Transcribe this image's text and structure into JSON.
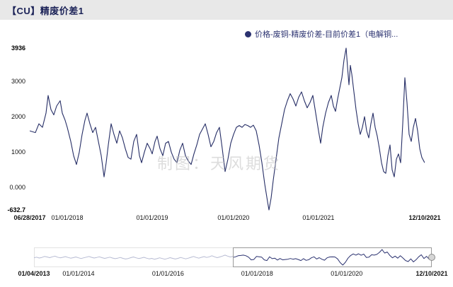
{
  "header": {
    "title": "【CU】精废价差1",
    "bg": "#e8e8e8"
  },
  "legend": {
    "label": "价格-废铜-精废价差-目前价差1（电解铜...",
    "dot_color": "#2b3270",
    "text_color": "#2b3270"
  },
  "watermark": "制图：天风期货",
  "chart_data": {
    "type": "line",
    "title": "【CU】精废价差1",
    "series_name": "价格-废铜-精废价差-目前价差1（电解铜...",
    "line_color": "#262e66",
    "ylim": [
      -632.7,
      3936
    ],
    "x_range": [
      "06/28/2017",
      "12/10/2021"
    ],
    "grid": false,
    "y_ticks": [
      {
        "label": "3936",
        "value": 3936,
        "bold": true
      },
      {
        "label": "3000",
        "value": 3000
      },
      {
        "label": "2000",
        "value": 2000
      },
      {
        "label": "1000",
        "value": 1000
      },
      {
        "label": "0.000",
        "value": 0
      },
      {
        "label": "-632.7",
        "value": -632.7,
        "bold": true
      }
    ],
    "x_ticks": [
      {
        "label": "06/28/2017",
        "f": 0,
        "bold": true
      },
      {
        "label": "01/01/2018",
        "f": 0.095
      },
      {
        "label": "01/01/2019",
        "f": 0.31
      },
      {
        "label": "01/01/2020",
        "f": 0.516
      },
      {
        "label": "01/01/2021",
        "f": 0.731
      },
      {
        "label": "12/10/2021",
        "f": 1,
        "bold": true
      }
    ],
    "points": [
      [
        0,
        1600
      ],
      [
        8,
        1550
      ],
      [
        13,
        1800
      ],
      [
        18,
        1700
      ],
      [
        23,
        2100
      ],
      [
        26,
        2600
      ],
      [
        30,
        2200
      ],
      [
        34,
        2050
      ],
      [
        38,
        2300
      ],
      [
        43,
        2450
      ],
      [
        46,
        2100
      ],
      [
        50,
        1900
      ],
      [
        53,
        1700
      ],
      [
        58,
        1300
      ],
      [
        62,
        900
      ],
      [
        66,
        650
      ],
      [
        70,
        1000
      ],
      [
        74,
        1500
      ],
      [
        78,
        1900
      ],
      [
        81,
        2100
      ],
      [
        85,
        1800
      ],
      [
        89,
        1550
      ],
      [
        93,
        1700
      ],
      [
        97,
        1300
      ],
      [
        101,
        900
      ],
      [
        105,
        300
      ],
      [
        108,
        700
      ],
      [
        111,
        1200
      ],
      [
        115,
        1800
      ],
      [
        119,
        1500
      ],
      [
        123,
        1250
      ],
      [
        127,
        1600
      ],
      [
        131,
        1400
      ],
      [
        135,
        1100
      ],
      [
        139,
        850
      ],
      [
        143,
        800
      ],
      [
        147,
        1300
      ],
      [
        151,
        1500
      ],
      [
        155,
        900
      ],
      [
        158,
        700
      ],
      [
        162,
        1000
      ],
      [
        166,
        1250
      ],
      [
        170,
        1100
      ],
      [
        173,
        950
      ],
      [
        177,
        1300
      ],
      [
        180,
        1450
      ],
      [
        184,
        1100
      ],
      [
        188,
        900
      ],
      [
        192,
        1250
      ],
      [
        196,
        1300
      ],
      [
        200,
        1000
      ],
      [
        204,
        800
      ],
      [
        208,
        700
      ],
      [
        212,
        1050
      ],
      [
        216,
        1250
      ],
      [
        220,
        900
      ],
      [
        224,
        750
      ],
      [
        228,
        650
      ],
      [
        232,
        950
      ],
      [
        236,
        1200
      ],
      [
        240,
        1500
      ],
      [
        244,
        1650
      ],
      [
        248,
        1800
      ],
      [
        252,
        1500
      ],
      [
        256,
        1150
      ],
      [
        260,
        1300
      ],
      [
        264,
        1550
      ],
      [
        268,
        1700
      ],
      [
        272,
        1100
      ],
      [
        276,
        450
      ],
      [
        280,
        800
      ],
      [
        284,
        1250
      ],
      [
        288,
        1500
      ],
      [
        292,
        1700
      ],
      [
        296,
        1750
      ],
      [
        300,
        1700
      ],
      [
        304,
        1780
      ],
      [
        308,
        1750
      ],
      [
        312,
        1700
      ],
      [
        316,
        1760
      ],
      [
        320,
        1600
      ],
      [
        324,
        1200
      ],
      [
        328,
        700
      ],
      [
        332,
        100
      ],
      [
        336,
        -400
      ],
      [
        338,
        -632.7
      ],
      [
        341,
        -300
      ],
      [
        344,
        200
      ],
      [
        348,
        800
      ],
      [
        352,
        1400
      ],
      [
        356,
        1800
      ],
      [
        360,
        2200
      ],
      [
        364,
        2450
      ],
      [
        368,
        2650
      ],
      [
        372,
        2500
      ],
      [
        376,
        2300
      ],
      [
        380,
        2550
      ],
      [
        384,
        2700
      ],
      [
        388,
        2450
      ],
      [
        392,
        2250
      ],
      [
        396,
        2400
      ],
      [
        400,
        2600
      ],
      [
        404,
        2100
      ],
      [
        408,
        1600
      ],
      [
        411,
        1250
      ],
      [
        414,
        1700
      ],
      [
        418,
        2100
      ],
      [
        422,
        2400
      ],
      [
        426,
        2600
      ],
      [
        429,
        2300
      ],
      [
        432,
        2150
      ],
      [
        435,
        2500
      ],
      [
        438,
        2800
      ],
      [
        441,
        3100
      ],
      [
        444,
        3600
      ],
      [
        447,
        3936
      ],
      [
        449,
        3400
      ],
      [
        451,
        2900
      ],
      [
        453,
        3450
      ],
      [
        455,
        3200
      ],
      [
        458,
        2700
      ],
      [
        461,
        2200
      ],
      [
        464,
        1800
      ],
      [
        467,
        1500
      ],
      [
        470,
        1700
      ],
      [
        473,
        2000
      ],
      [
        476,
        1600
      ],
      [
        479,
        1400
      ],
      [
        482,
        1800
      ],
      [
        485,
        2100
      ],
      [
        488,
        1700
      ],
      [
        491,
        1450
      ],
      [
        494,
        1100
      ],
      [
        497,
        700
      ],
      [
        500,
        450
      ],
      [
        503,
        400
      ],
      [
        506,
        900
      ],
      [
        509,
        1200
      ],
      [
        512,
        500
      ],
      [
        515,
        300
      ],
      [
        518,
        800
      ],
      [
        521,
        950
      ],
      [
        524,
        700
      ],
      [
        527,
        1800
      ],
      [
        530,
        3100
      ],
      [
        533,
        2400
      ],
      [
        536,
        1500
      ],
      [
        539,
        1300
      ],
      [
        542,
        1700
      ],
      [
        545,
        1950
      ],
      [
        548,
        1600
      ],
      [
        551,
        1100
      ],
      [
        554,
        850
      ],
      [
        558,
        700
      ]
    ],
    "navigator": {
      "pre_color": "#b6bad2",
      "sel_color": "#2b3270",
      "selection_start_f": 0.5,
      "x_ticks": [
        {
          "label": "01/04/2013",
          "f": 0,
          "bold": true
        },
        {
          "label": "01/01/2014",
          "f": 0.112
        },
        {
          "label": "01/01/2016",
          "f": 0.337
        },
        {
          "label": "01/01/2018",
          "f": 0.561
        },
        {
          "label": "01/01/2020",
          "f": 0.786
        },
        {
          "label": "12/10/2021",
          "f": 1,
          "bold": true
        }
      ],
      "pre_values": [
        1500,
        1700,
        1450,
        1600,
        1900,
        1750,
        1550,
        1800,
        2000,
        1700,
        1500,
        1650,
        1850,
        1600,
        1400,
        1550,
        1750,
        1500,
        1300,
        1500,
        1700,
        1900,
        1650,
        1450,
        1600,
        1800,
        1550,
        1350,
        1500,
        1700,
        1450,
        1250,
        1400,
        1600,
        1350,
        1150,
        1300,
        1550,
        1750,
        1500,
        1300,
        1450,
        1650,
        1400,
        1200,
        1350,
        1100,
        1250,
        1500,
        1300,
        1100,
        1300,
        1550,
        1350,
        1150,
        1350,
        1600,
        1400,
        1200,
        1400,
        1650,
        1900,
        1600,
        1400,
        1650,
        1850,
        1600,
        1800,
        2100,
        1800,
        1550,
        1750,
        2000,
        2300,
        2000,
        1750,
        1900
      ],
      "sel_values": [
        1600,
        1800,
        2100,
        2200,
        2300,
        2100,
        1700,
        900,
        1000,
        1900,
        1800,
        1700,
        900,
        700,
        1800,
        1250,
        1400,
        850,
        1300,
        900,
        1000,
        1100,
        1300,
        1100,
        1250,
        1000,
        700,
        1250,
        750,
        950,
        1500,
        1800,
        1150,
        1550,
        1100,
        800,
        1500,
        1750,
        1780,
        1760,
        1200,
        100,
        -632.7,
        200,
        1400,
        2200,
        2650,
        2300,
        2700,
        2250,
        2600,
        1600,
        1700,
        2400,
        2300,
        2500,
        3100,
        3936,
        2900,
        3200,
        2200,
        1500,
        2000,
        1400,
        2100,
        1450,
        700,
        400,
        1200,
        300,
        950,
        1800,
        2400,
        1300,
        1950,
        1100,
        700
      ]
    }
  }
}
